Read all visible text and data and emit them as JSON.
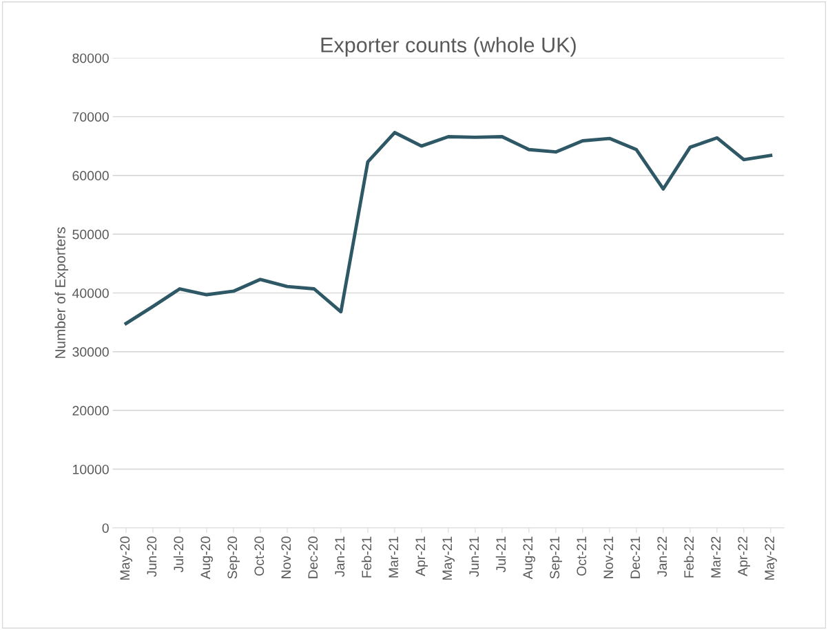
{
  "chart_data": {
    "type": "line",
    "title": "Exporter counts (whole UK)",
    "ylabel": "Number of Exporters",
    "categories": [
      "May-20",
      "Jun-20",
      "Jul-20",
      "Aug-20",
      "Sep-20",
      "Oct-20",
      "Nov-20",
      "Dec-20",
      "Jan-21",
      "Feb-21",
      "Mar-21",
      "Apr-21",
      "May-21",
      "Jun-21",
      "Jul-21",
      "Aug-21",
      "Sep-21",
      "Oct-21",
      "Nov-21",
      "Dec-21",
      "Jan-22",
      "Feb-22",
      "Mar-22",
      "Apr-22",
      "May-22"
    ],
    "series": [
      {
        "color": "#2e5866",
        "values": [
          34800,
          37700,
          40700,
          39700,
          40300,
          42300,
          41100,
          40700,
          36800,
          62300,
          67300,
          65000,
          66600,
          66500,
          66600,
          64400,
          64000,
          65900,
          66300,
          64400,
          57700,
          64800,
          66400,
          62700,
          63400
        ]
      }
    ],
    "ylim": [
      0,
      80000
    ],
    "yticks": [
      0,
      10000,
      20000,
      30000,
      40000,
      50000,
      60000,
      70000,
      80000
    ],
    "grid": "y",
    "legend": false,
    "marker": "none",
    "line_style": "solid"
  }
}
